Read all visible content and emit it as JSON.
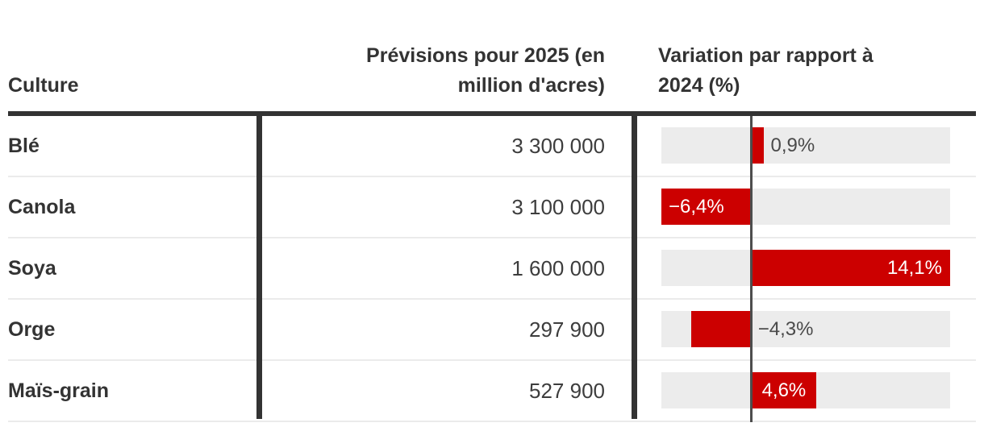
{
  "table": {
    "columns": {
      "culture_label": "Culture",
      "forecast_lines": [
        "Prévisions pour 2025 (en",
        "million d'acres)"
      ],
      "variation_lines": [
        "Variation par rapport à",
        "2024 (%)"
      ]
    },
    "rows": [
      {
        "culture": "Blé",
        "forecast": "3 300 000",
        "variation": 0.9,
        "variation_label": "0,9%",
        "label_placement": "outside",
        "label_tone": "dark"
      },
      {
        "culture": "Canola",
        "forecast": "3 100 000",
        "variation": -6.4,
        "variation_label": "−6,4%",
        "label_placement": "inside-left",
        "label_tone": "light"
      },
      {
        "culture": "Soya",
        "forecast": "1 600 000",
        "variation": 14.1,
        "variation_label": "14,1%",
        "label_placement": "inside-right",
        "label_tone": "light"
      },
      {
        "culture": "Orge",
        "forecast": "297 900",
        "variation": -4.3,
        "variation_label": "−4,3%",
        "label_placement": "outside",
        "label_tone": "dark"
      },
      {
        "culture": "Maïs-grain",
        "forecast": "527 900",
        "variation": 4.6,
        "variation_label": "4,6%",
        "label_placement": "inside-center",
        "label_tone": "light"
      }
    ]
  },
  "chart_data": {
    "type": "bar",
    "orientation": "horizontal",
    "categories": [
      "Blé",
      "Canola",
      "Soya",
      "Orge",
      "Maïs-grain"
    ],
    "series": [
      {
        "name": "Prévisions pour 2025 (en million d'acres)",
        "values": [
          3300000,
          3100000,
          1600000,
          297900,
          527900
        ]
      },
      {
        "name": "Variation par rapport à 2024 (%)",
        "values": [
          0.9,
          -6.4,
          14.1,
          -4.3,
          4.6
        ]
      }
    ],
    "xlim": [
      -6.4,
      14.1
    ],
    "grid": false,
    "legend": false,
    "zero_baseline": true
  },
  "colors": {
    "bar_red": "#cc0000",
    "track_gray": "#ececec",
    "ink": "#333333",
    "value_text": "#3d3d3d",
    "zero_line": "#4d4d4d",
    "separator": "#ebebeb",
    "label_light": "#ffffff"
  }
}
